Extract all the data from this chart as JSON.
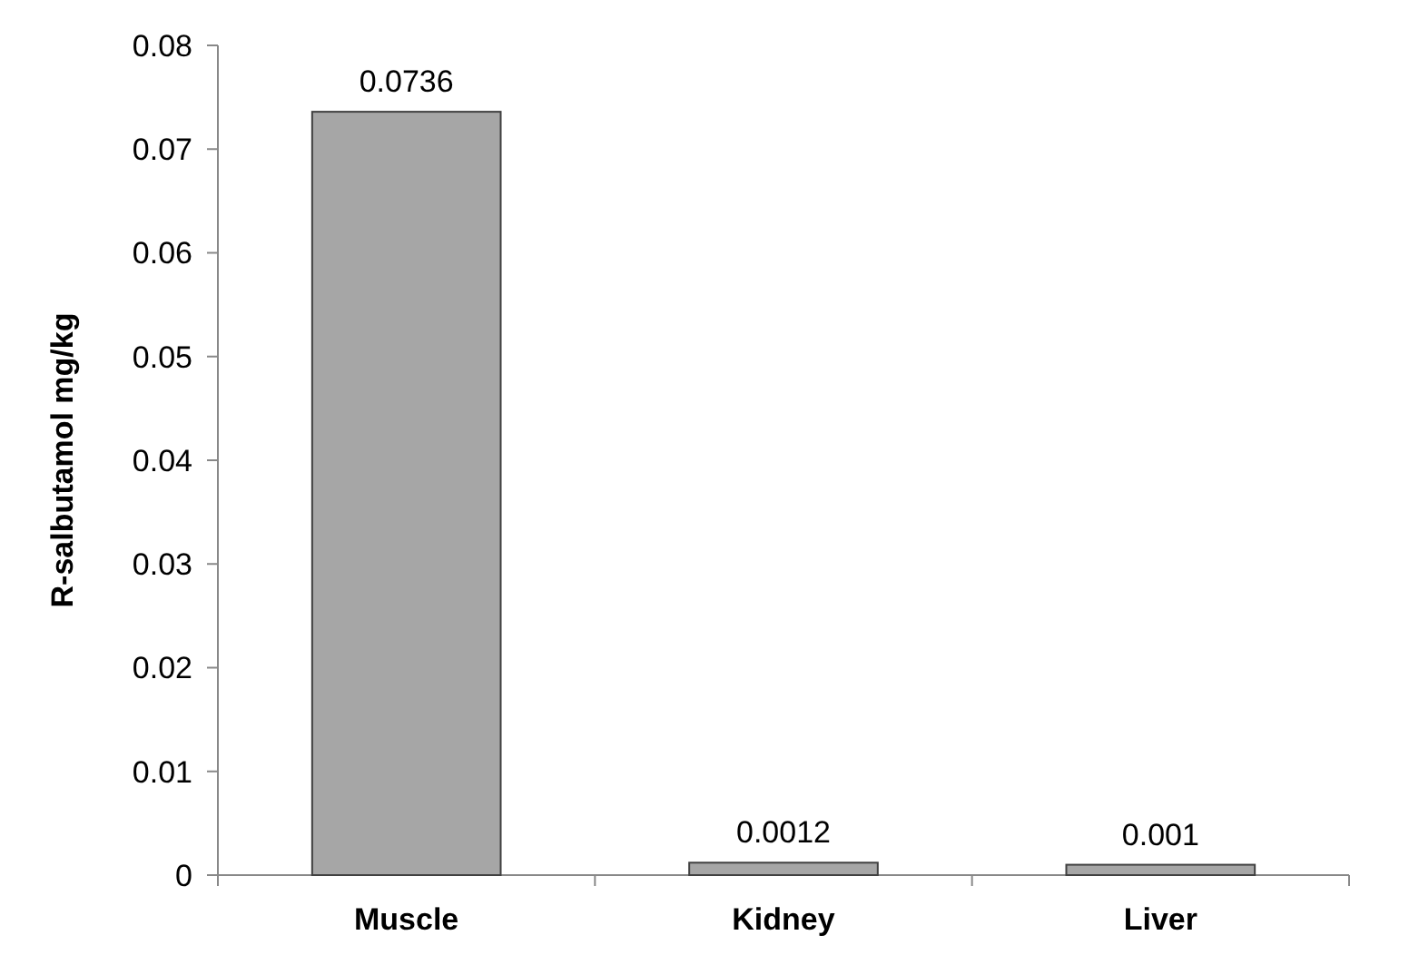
{
  "chart_data": {
    "type": "bar",
    "ylabel": "R-salbutamol mg/kg",
    "categories": [
      "Muscle",
      "Kidney",
      "Liver"
    ],
    "values": [
      0.0736,
      0.0012,
      0.001
    ],
    "color": "#a6a6a6",
    "ylim": [
      0,
      0.08
    ],
    "yticks": [
      0,
      0.01,
      0.02,
      0.03,
      0.04,
      0.05,
      0.06,
      0.07,
      0.08
    ],
    "data_labels": true,
    "grid": false
  }
}
